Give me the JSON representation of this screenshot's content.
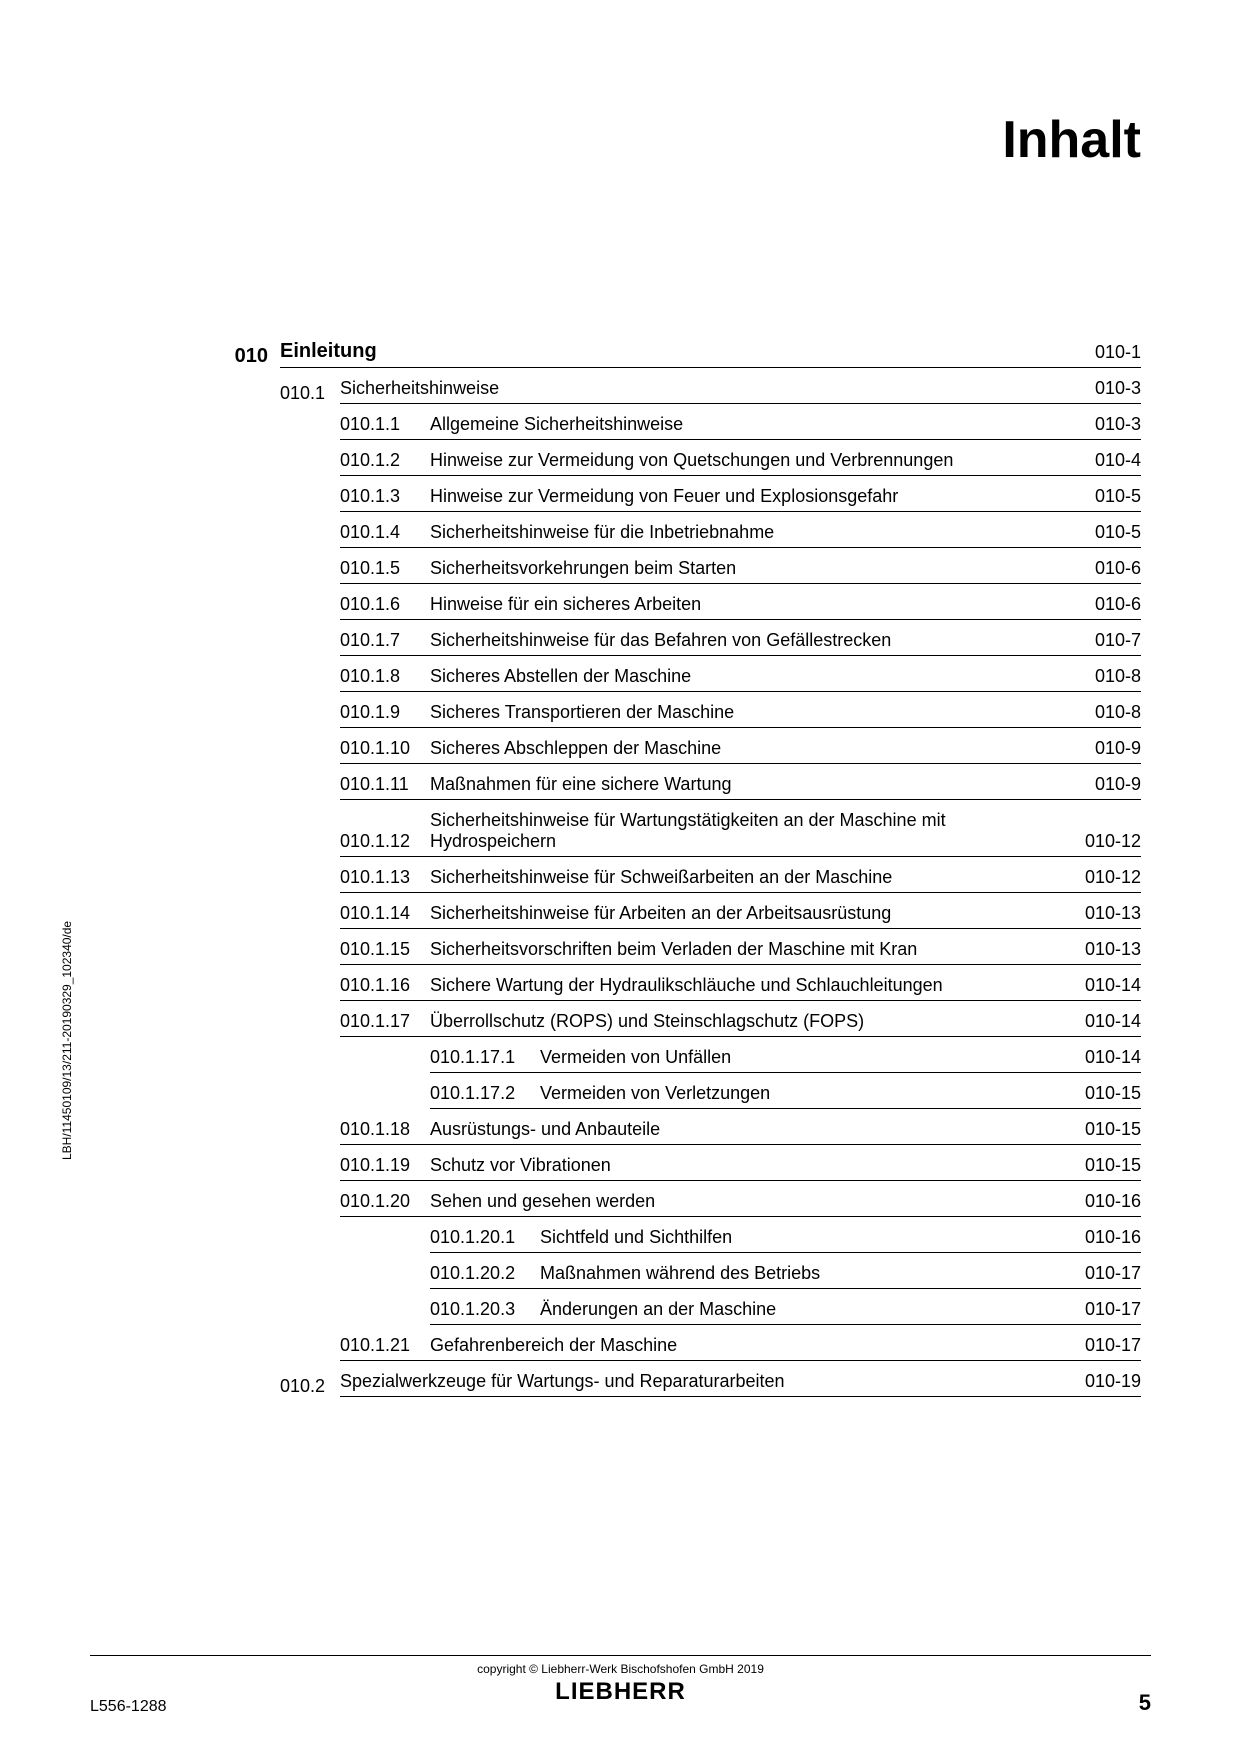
{
  "title": "Inhalt",
  "sidetext": "LBH/11450109/13/211-20190329_102340/de",
  "copyright": "copyright © Liebherr-Werk Bischofshofen GmbH 2019",
  "logo": "LIEBHERR",
  "doc_id": "L556-1288",
  "page_num": "5",
  "entries": [
    {
      "level": 0,
      "num": "010",
      "txt": "Einleitung",
      "pg": "010-1"
    },
    {
      "level": 1,
      "num": "010.1",
      "txt": "Sicherheitshinweise",
      "pg": "010-3"
    },
    {
      "level": 2,
      "num": "010.1.1",
      "txt": "Allgemeine Sicherheitshinweise",
      "pg": "010-3"
    },
    {
      "level": 2,
      "num": "010.1.2",
      "txt": "Hinweise zur Vermeidung von Quetschungen und Verbrennungen",
      "pg": "010-4"
    },
    {
      "level": 2,
      "num": "010.1.3",
      "txt": "Hinweise zur Vermeidung von Feuer und Explosionsgefahr",
      "pg": "010-5"
    },
    {
      "level": 2,
      "num": "010.1.4",
      "txt": "Sicherheitshinweise für die Inbetriebnahme",
      "pg": "010-5"
    },
    {
      "level": 2,
      "num": "010.1.5",
      "txt": "Sicherheitsvorkehrungen beim Starten",
      "pg": "010-6"
    },
    {
      "level": 2,
      "num": "010.1.6",
      "txt": "Hinweise für ein sicheres Arbeiten",
      "pg": "010-6"
    },
    {
      "level": 2,
      "num": "010.1.7",
      "txt": "Sicherheitshinweise für das Befahren von Gefällestrecken",
      "pg": "010-7"
    },
    {
      "level": 2,
      "num": "010.1.8",
      "txt": "Sicheres Abstellen der Maschine",
      "pg": "010-8"
    },
    {
      "level": 2,
      "num": "010.1.9",
      "txt": "Sicheres Transportieren der Maschine",
      "pg": "010-8"
    },
    {
      "level": 2,
      "num": "010.1.10",
      "txt": "Sicheres Abschleppen der Maschine",
      "pg": "010-9"
    },
    {
      "level": 2,
      "num": "010.1.11",
      "txt": "Maßnahmen für eine sichere Wartung",
      "pg": "010-9"
    },
    {
      "level": 2,
      "num": "010.1.12",
      "txt": "Sicherheitshinweise für Wartungstätigkeiten an der Maschine mit Hydrospeichern",
      "pg": "010-12"
    },
    {
      "level": 2,
      "num": "010.1.13",
      "txt": "Sicherheitshinweise für Schweißarbeiten an der Maschine",
      "pg": "010-12"
    },
    {
      "level": 2,
      "num": "010.1.14",
      "txt": "Sicherheitshinweise für Arbeiten an der Arbeitsausrüstung",
      "pg": "010-13"
    },
    {
      "level": 2,
      "num": "010.1.15",
      "txt": "Sicherheitsvorschriften beim Verladen der Maschine mit Kran",
      "pg": "010-13"
    },
    {
      "level": 2,
      "num": "010.1.16",
      "txt": "Sichere Wartung der Hydraulikschläuche und Schlauchleitungen",
      "pg": "010-14"
    },
    {
      "level": 2,
      "num": "010.1.17",
      "txt": "Überrollschutz (ROPS) und Steinschlagschutz (FOPS)",
      "pg": "010-14"
    },
    {
      "level": 3,
      "num": "010.1.17.1",
      "txt": "Vermeiden von Unfällen",
      "pg": "010-14"
    },
    {
      "level": 3,
      "num": "010.1.17.2",
      "txt": "Vermeiden von Verletzungen",
      "pg": "010-15"
    },
    {
      "level": 2,
      "num": "010.1.18",
      "txt": "Ausrüstungs- und Anbauteile",
      "pg": "010-15"
    },
    {
      "level": 2,
      "num": "010.1.19",
      "txt": "Schutz vor Vibrationen",
      "pg": "010-15"
    },
    {
      "level": 2,
      "num": "010.1.20",
      "txt": "Sehen und gesehen werden",
      "pg": "010-16"
    },
    {
      "level": 3,
      "num": "010.1.20.1",
      "txt": "Sichtfeld und Sichthilfen",
      "pg": "010-16"
    },
    {
      "level": 3,
      "num": "010.1.20.2",
      "txt": "Maßnahmen während des Betriebs",
      "pg": "010-17"
    },
    {
      "level": 3,
      "num": "010.1.20.3",
      "txt": "Änderungen an der Maschine",
      "pg": "010-17"
    },
    {
      "level": 2,
      "num": "010.1.21",
      "txt": "Gefahrenbereich der Maschine",
      "pg": "010-17"
    },
    {
      "level": 1,
      "num": "010.2",
      "txt": "Spezialwerkzeuge für Wartungs- und Reparaturarbeiten",
      "pg": "010-19"
    }
  ]
}
